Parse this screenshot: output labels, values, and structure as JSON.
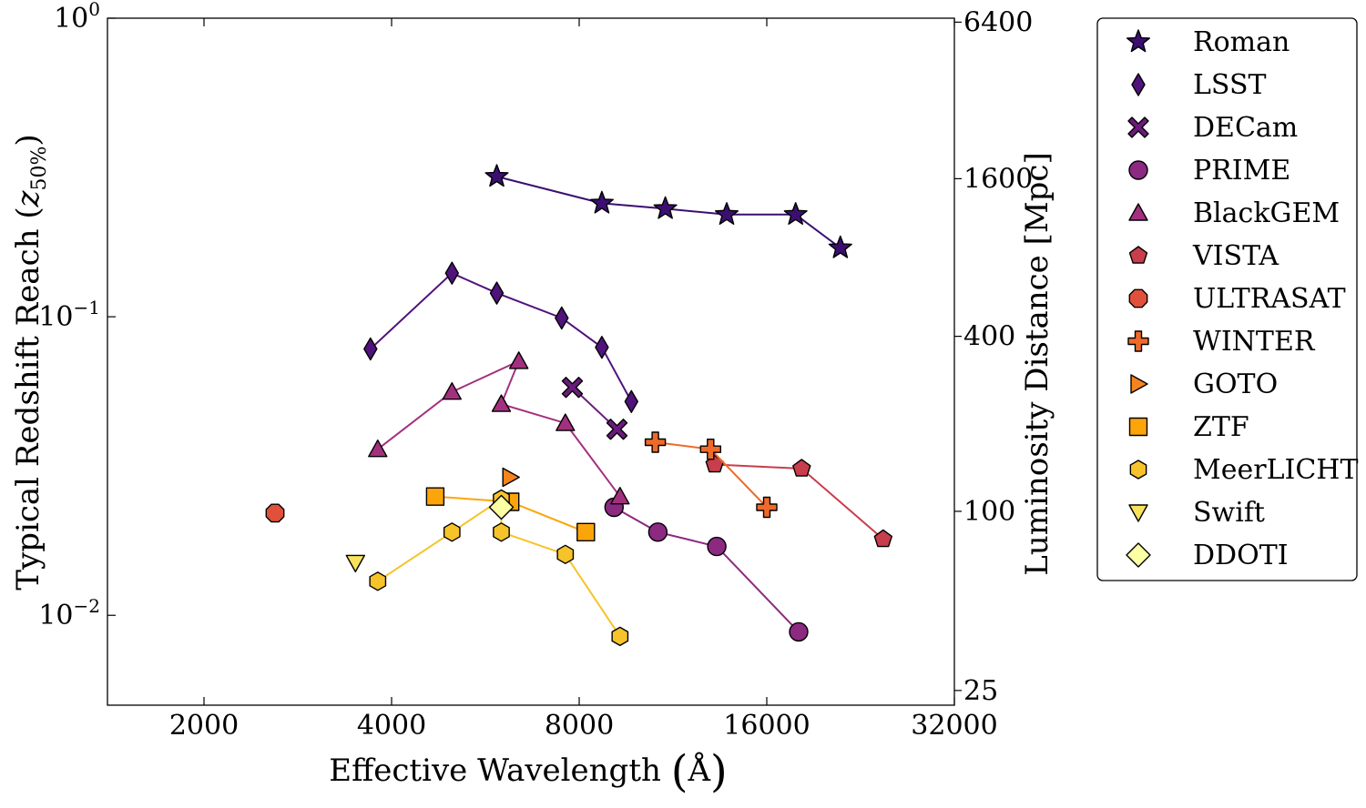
{
  "chart_data": {
    "type": "scatter",
    "x_axis": {
      "label": "Effective Wavelength",
      "unit": "Å",
      "scale": "log2",
      "lim": [
        1400,
        32000
      ],
      "ticks": [
        2000,
        4000,
        8000,
        16000,
        32000
      ],
      "tick_labels": [
        "2000",
        "4000",
        "8000",
        "16000",
        "32000"
      ]
    },
    "y_axis": {
      "label": "Typical Redshift Reach",
      "symbol": "z",
      "subscript": "50%",
      "scale": "log10",
      "lim": [
        0.005,
        1.0
      ],
      "ticks": [
        0.01,
        0.1,
        1.0
      ],
      "tick_bases": [
        "10",
        "10",
        "10"
      ],
      "tick_exponents": [
        "−2",
        "−1",
        "0"
      ]
    },
    "y2_axis": {
      "label": "Luminosity Distance [Mpc]",
      "scale": "log",
      "ticks": [
        {
          "label": "6400",
          "at_z": 0.97
        },
        {
          "label": "1600",
          "at_z": 0.29
        },
        {
          "label": "400",
          "at_z": 0.086
        },
        {
          "label": "100",
          "at_z": 0.0223
        },
        {
          "label": "25",
          "at_z": 0.0056
        }
      ]
    },
    "grid": false,
    "legend_position": "outside-right",
    "series": [
      {
        "name": "Roman",
        "marker": "star",
        "color": "#3b0f70",
        "line": true,
        "points": [
          [
            5900,
            0.295
          ],
          [
            8700,
            0.24
          ],
          [
            11000,
            0.23
          ],
          [
            13800,
            0.22
          ],
          [
            17800,
            0.22
          ],
          [
            21000,
            0.17
          ]
        ]
      },
      {
        "name": "LSST",
        "marker": "diamond",
        "color": "#50127b",
        "line": true,
        "points": [
          [
            3700,
            0.078
          ],
          [
            5000,
            0.14
          ],
          [
            5900,
            0.12
          ],
          [
            7500,
            0.099
          ],
          [
            8700,
            0.079
          ],
          [
            9700,
            0.052
          ]
        ]
      },
      {
        "name": "DECam",
        "marker": "x",
        "color": "#6b1a7d",
        "line": true,
        "points": [
          [
            7800,
            0.058
          ],
          [
            9200,
            0.042
          ]
        ]
      },
      {
        "name": "PRIME",
        "marker": "circle",
        "color": "#8c2981",
        "line": true,
        "points": [
          [
            9100,
            0.023
          ],
          [
            10700,
            0.019
          ],
          [
            13300,
            0.017
          ],
          [
            18000,
            0.0088
          ]
        ]
      },
      {
        "name": "BlackGEM",
        "marker": "triangle-up",
        "color": "#a3307e",
        "line": true,
        "points": [
          [
            3800,
            0.036
          ],
          [
            5000,
            0.056
          ],
          [
            6400,
            0.071
          ],
          [
            6000,
            0.051
          ],
          [
            7600,
            0.044
          ],
          [
            9300,
            0.025
          ]
        ]
      },
      {
        "name": "VISTA",
        "marker": "pentagon",
        "color": "#c83e4c",
        "line": true,
        "points": [
          [
            13200,
            0.032
          ],
          [
            18200,
            0.031
          ],
          [
            24600,
            0.018
          ]
        ]
      },
      {
        "name": "ULTRASAT",
        "marker": "octagon",
        "color": "#e0503a",
        "line": false,
        "points": [
          [
            2600,
            0.022
          ]
        ]
      },
      {
        "name": "WINTER",
        "marker": "plus",
        "color": "#ee6a2b",
        "line": true,
        "points": [
          [
            10600,
            0.038
          ],
          [
            13000,
            0.036
          ],
          [
            16000,
            0.023
          ]
        ]
      },
      {
        "name": "GOTO",
        "marker": "triangle-right",
        "color": "#f5841f",
        "line": false,
        "points": [
          [
            6200,
            0.029
          ]
        ]
      },
      {
        "name": "ZTF",
        "marker": "square",
        "color": "#fca50a",
        "line": true,
        "points": [
          [
            4700,
            0.025
          ],
          [
            6200,
            0.024
          ],
          [
            8200,
            0.019
          ]
        ]
      },
      {
        "name": "MeerLICHT",
        "marker": "hexagon",
        "color": "#f6c32a",
        "line": true,
        "points": [
          [
            3800,
            0.013
          ],
          [
            5000,
            0.019
          ],
          [
            6000,
            0.0245
          ],
          [
            6000,
            0.019
          ],
          [
            7600,
            0.016
          ],
          [
            9300,
            0.0085
          ]
        ]
      },
      {
        "name": "Swift",
        "marker": "triangle-down",
        "color": "#f8e25c",
        "line": false,
        "points": [
          [
            3500,
            0.015
          ]
        ]
      },
      {
        "name": "DDOTI",
        "marker": "diamond-wide",
        "color": "#fcffa4",
        "line": false,
        "points": [
          [
            6000,
            0.023
          ]
        ]
      }
    ]
  }
}
